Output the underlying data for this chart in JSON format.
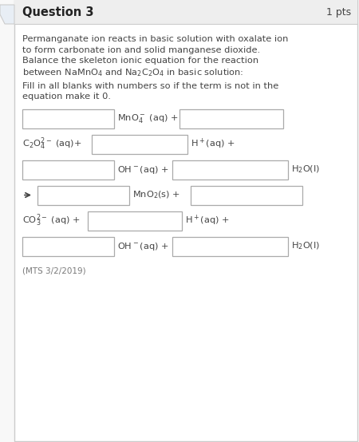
{
  "title": "Question 3",
  "pts": "1 pts",
  "bg_color": "#f8f8f8",
  "content_bg": "#ffffff",
  "header_bg": "#eeeeee",
  "border_color": "#cccccc",
  "text_color": "#444444",
  "blue_text": "#3a6ea5",
  "footer_color": "#7a7a7a",
  "para1_line1": "Permanganate ion reacts in basic solution with oxalate ion",
  "para1_line2": "to form carbonate ion and solid manganese dioxide.",
  "para1_line3": "Balance the skeleton ionic equation for the reaction",
  "para1_line4": "between NaMnO",
  "para1_line4b": " and Na",
  "para1_line4c": "C",
  "para1_line4d": "O",
  "para1_line4e": " in basic solution:",
  "para2_line1": "Fill in all blanks with numbers so if the term is not in the",
  "para2_line2": "equation make it 0.",
  "footer": "(MTS 3/2/2019)",
  "box_fc": "#ffffff",
  "box_ec": "#aaaaaa"
}
